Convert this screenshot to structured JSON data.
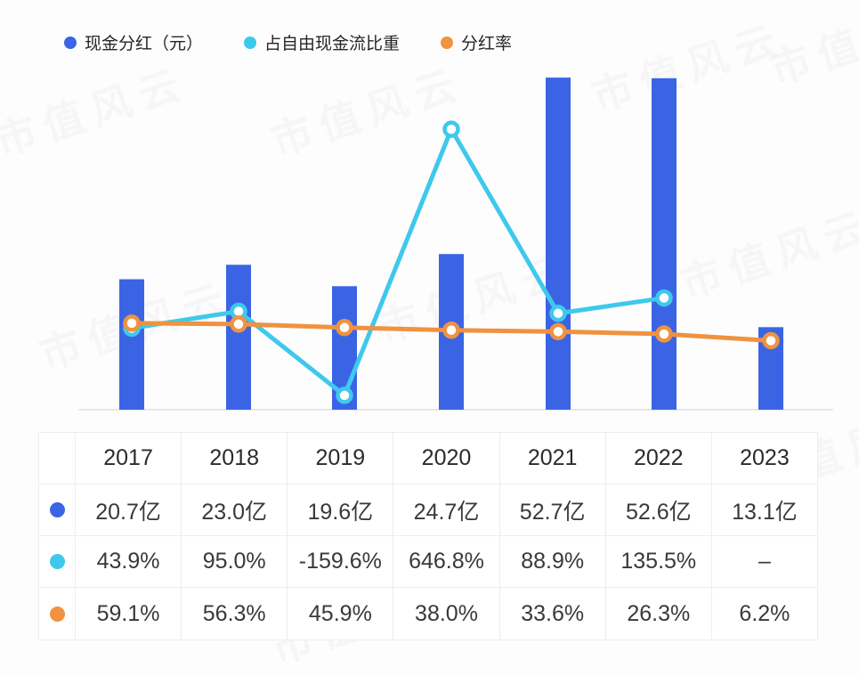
{
  "watermark": "市值风云",
  "legend": [
    {
      "label": "现金分红（元）",
      "color": "#3b64e5"
    },
    {
      "label": "占自由现金流比重",
      "color": "#3ec9ec"
    },
    {
      "label": "分红率",
      "color": "#f0923f"
    }
  ],
  "chart_data": {
    "type": "bar+line",
    "categories": [
      "2017",
      "2018",
      "2019",
      "2020",
      "2021",
      "2022",
      "2023"
    ],
    "series": [
      {
        "name": "现金分红（元）",
        "type": "bar",
        "unit": "亿",
        "color": "#3b64e5",
        "values": [
          20.7,
          23.0,
          19.6,
          24.7,
          52.7,
          52.6,
          13.1
        ]
      },
      {
        "name": "占自由现金流比重",
        "type": "line",
        "unit": "%",
        "color": "#3ec9ec",
        "values": [
          43.9,
          95.0,
          -159.6,
          646.8,
          88.9,
          135.5,
          null
        ]
      },
      {
        "name": "分红率",
        "type": "line",
        "unit": "%",
        "color": "#f0923f",
        "values": [
          59.1,
          56.3,
          45.9,
          38.0,
          33.6,
          26.3,
          6.2
        ]
      }
    ],
    "bar_ylim": [
      0,
      53
    ],
    "pct_ylim": [
      -203,
      809
    ],
    "grid": false,
    "axis_color": "#e7e7e9",
    "legend_position": "top-left",
    "title": "",
    "xlabel": "",
    "ylabel": ""
  },
  "table": {
    "header": [
      "",
      "2017",
      "2018",
      "2019",
      "2020",
      "2021",
      "2022",
      "2023"
    ],
    "rows": [
      {
        "series": "现金分红（元）",
        "dot_color": "#3b64e5",
        "cells": [
          "20.7亿",
          "23.0亿",
          "19.6亿",
          "24.7亿",
          "52.7亿",
          "52.6亿",
          "13.1亿"
        ]
      },
      {
        "series": "占自由现金流比重",
        "dot_color": "#3ec9ec",
        "cells": [
          "43.9%",
          "95.0%",
          "-159.6%",
          "646.8%",
          "88.9%",
          "135.5%",
          "–"
        ]
      },
      {
        "series": "分红率",
        "dot_color": "#f0923f",
        "cells": [
          "59.1%",
          "56.3%",
          "45.9%",
          "38.0%",
          "33.6%",
          "26.3%",
          "6.2%"
        ]
      }
    ]
  }
}
